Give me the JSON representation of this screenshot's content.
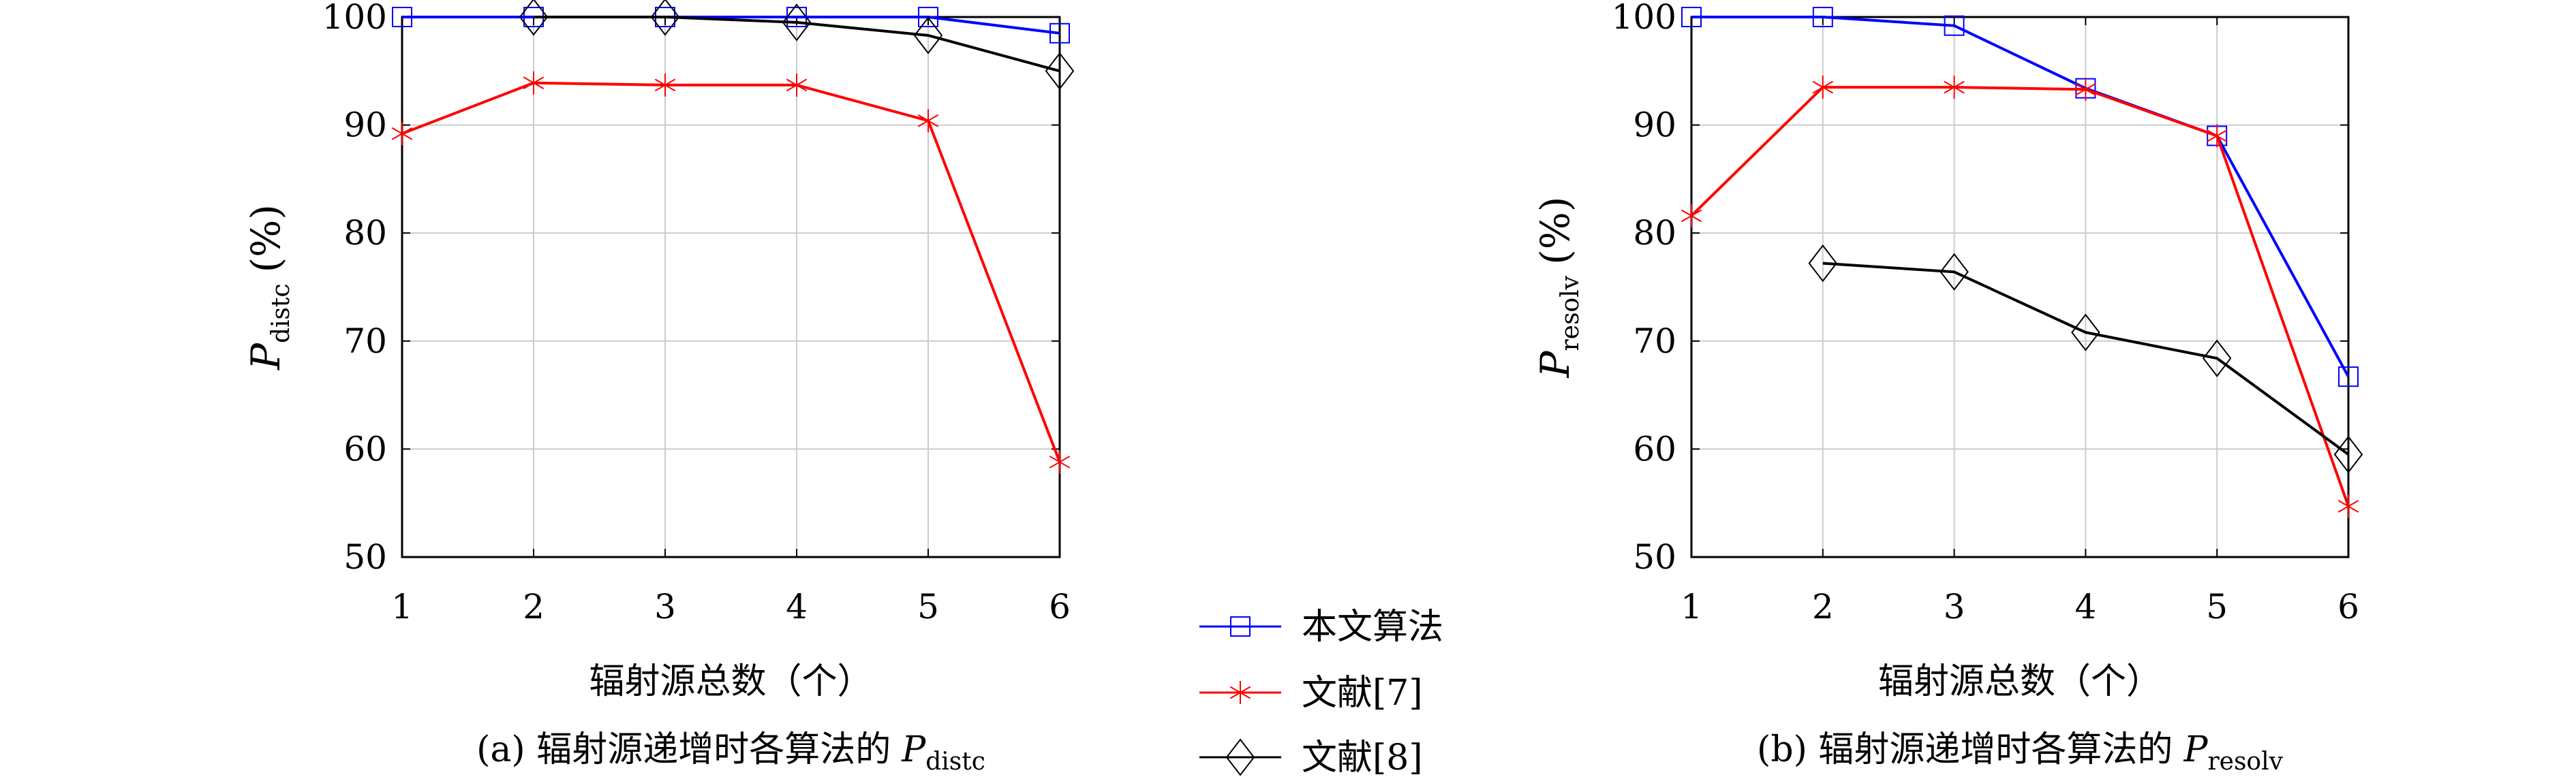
{
  "chart_data": [
    {
      "type": "line",
      "caption": "(a) 辐射源递增时各算法的",
      "caption_symbol": "P",
      "caption_sub": "distc",
      "ylabel": "P",
      "ylabel_sub": "distc",
      "ylabel_unit": "(%)",
      "xlabel": "辐射源总数（个）",
      "x": [
        1,
        2,
        3,
        4,
        5,
        6
      ],
      "xlim": [
        1,
        6
      ],
      "ylim": [
        50,
        100
      ],
      "yticks": [
        50,
        60,
        70,
        80,
        90,
        100
      ],
      "grid": true,
      "series": [
        {
          "name": "本文算法",
          "values": [
            100,
            100,
            100,
            100,
            100,
            98.5
          ],
          "color": "#0000ff",
          "marker": "square"
        },
        {
          "name": "文献[7]",
          "values": [
            89.2,
            93.9,
            93.7,
            93.7,
            90.4,
            58.8
          ],
          "color": "#ff0000",
          "marker": "star"
        },
        {
          "name": "文献[8]",
          "values": [
            null,
            100,
            100,
            99.5,
            98.3,
            95.0
          ],
          "color": "#000000",
          "marker": "diamond"
        }
      ]
    },
    {
      "type": "line",
      "caption": "(b) 辐射源递增时各算法的",
      "caption_symbol": "P",
      "caption_sub": "resolv",
      "ylabel": "P",
      "ylabel_sub": "resolv",
      "ylabel_unit": "(%)",
      "xlabel": "辐射源总数（个）",
      "x": [
        1,
        2,
        3,
        4,
        5,
        6
      ],
      "xlim": [
        1,
        6
      ],
      "ylim": [
        50,
        100
      ],
      "yticks": [
        50,
        60,
        70,
        80,
        90,
        100
      ],
      "grid": true,
      "series": [
        {
          "name": "本文算法",
          "values": [
            100,
            100,
            99.2,
            93.4,
            89.0,
            66.7
          ],
          "color": "#0000ff",
          "marker": "square"
        },
        {
          "name": "文献[7]",
          "values": [
            81.6,
            93.5,
            93.5,
            93.3,
            89.0,
            54.7
          ],
          "color": "#ff0000",
          "marker": "star"
        },
        {
          "name": "文献[8]",
          "values": [
            null,
            77.2,
            76.4,
            70.8,
            68.4,
            59.5
          ],
          "color": "#000000",
          "marker": "diamond"
        }
      ]
    }
  ],
  "legend": {
    "placement": "bottom-center",
    "items": [
      {
        "label": "本文算法",
        "color": "#0000ff",
        "marker": "square"
      },
      {
        "label": "文献[7]",
        "color": "#ff0000",
        "marker": "star"
      },
      {
        "label": "文献[8]",
        "color": "#000000",
        "marker": "diamond"
      }
    ]
  }
}
